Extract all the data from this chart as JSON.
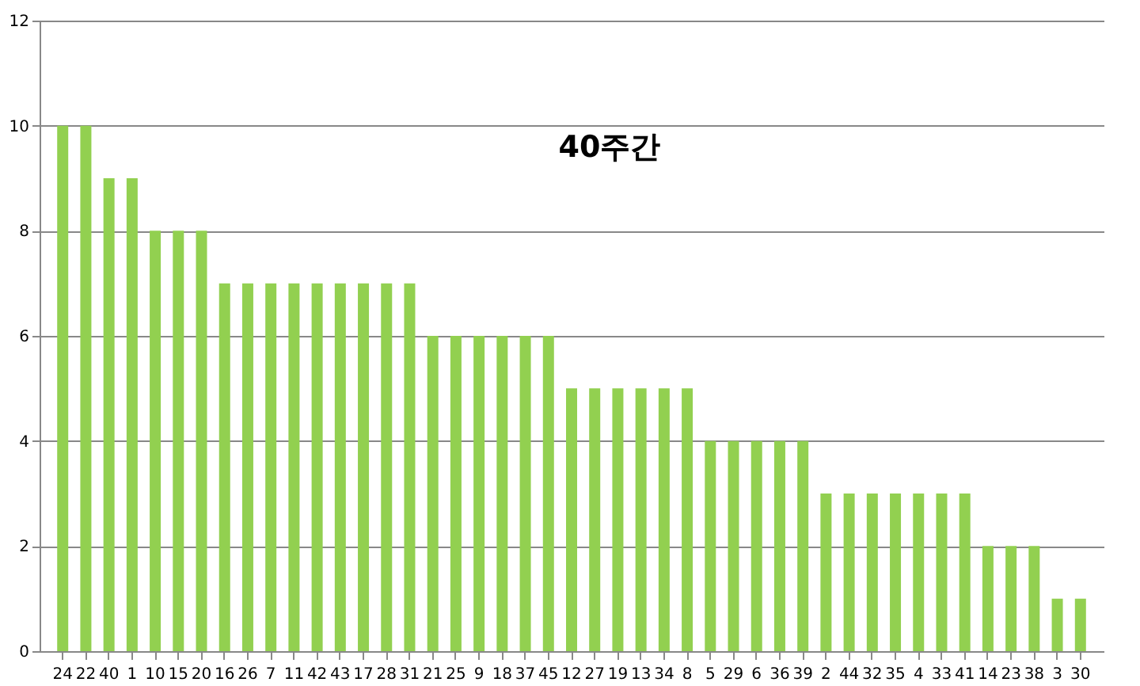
{
  "chart_data": {
    "type": "bar",
    "title": "40주간",
    "categories": [
      "24",
      "22",
      "40",
      "1",
      "10",
      "15",
      "20",
      "16",
      "26",
      "7",
      "11",
      "42",
      "43",
      "17",
      "28",
      "31",
      "21",
      "25",
      "9",
      "18",
      "37",
      "45",
      "12",
      "27",
      "19",
      "13",
      "34",
      "8",
      "5",
      "29",
      "6",
      "36",
      "39",
      "2",
      "44",
      "32",
      "35",
      "4",
      "33",
      "41",
      "14",
      "23",
      "38",
      "3",
      "30"
    ],
    "values": [
      10,
      10,
      9,
      9,
      8,
      8,
      8,
      7,
      7,
      7,
      7,
      7,
      7,
      7,
      7,
      7,
      6,
      6,
      6,
      6,
      6,
      6,
      5,
      5,
      5,
      5,
      5,
      5,
      4,
      4,
      4,
      4,
      4,
      3,
      3,
      3,
      3,
      3,
      3,
      3,
      2,
      2,
      2,
      1,
      1
    ],
    "color": "#92d050",
    "ylim": [
      0,
      12
    ],
    "yticks": [
      0,
      2,
      4,
      6,
      8,
      10,
      12
    ],
    "grid": "y"
  }
}
